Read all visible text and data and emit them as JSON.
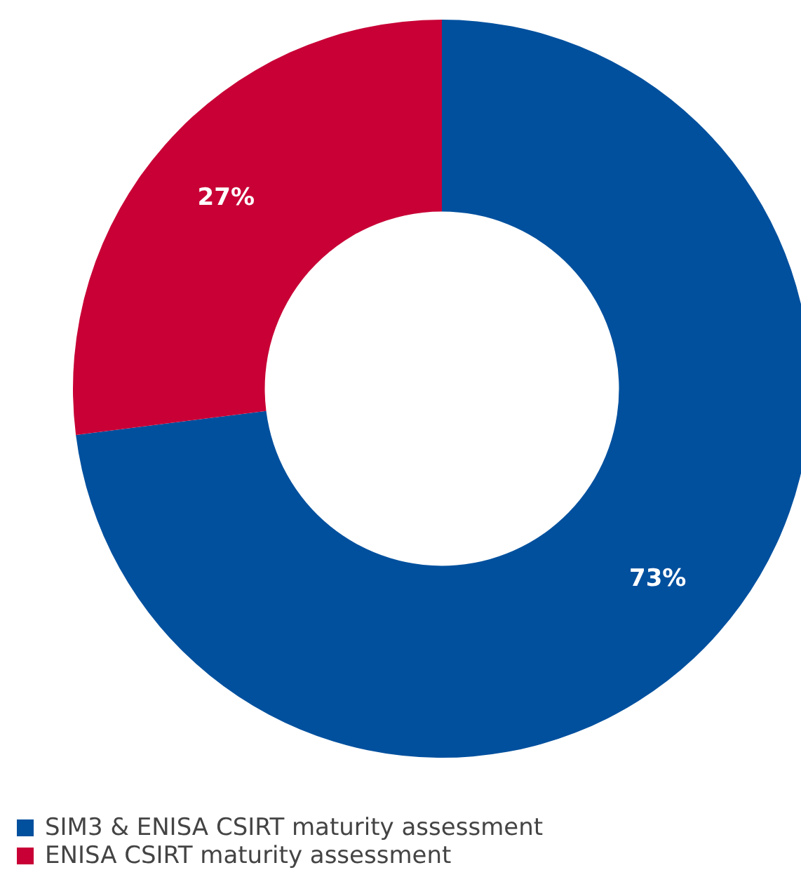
{
  "chart_data": {
    "type": "donut",
    "categories": [
      "SIM3 & ENISA CSIRT maturity assessment",
      "ENISA CSIRT maturity assessment"
    ],
    "values": [
      73,
      27
    ],
    "colors": [
      "#00509e",
      "#c80036"
    ],
    "value_labels": [
      "73%",
      "27%"
    ],
    "legend": "bottom"
  }
}
